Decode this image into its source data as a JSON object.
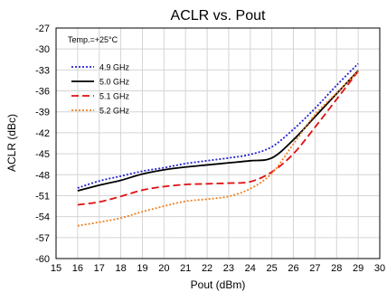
{
  "chart_data": {
    "type": "line",
    "title": "ACLR vs. Pout",
    "xlabel": "Pout (dBm)",
    "ylabel": "ACLR (dBc)",
    "xlim": [
      15,
      30
    ],
    "ylim": [
      -60,
      -27
    ],
    "xticks": [
      15,
      16,
      17,
      18,
      19,
      20,
      21,
      22,
      23,
      24,
      25,
      26,
      27,
      28,
      29,
      30
    ],
    "yticks": [
      -60,
      -57,
      -54,
      -51,
      -48,
      -45,
      -42,
      -39,
      -36,
      -33,
      -30,
      -27
    ],
    "grid": true,
    "legend_title": "Temp.=+25°C",
    "legend_position": "top-left",
    "series": [
      {
        "name": "4.9 GHz",
        "color": "#2020d0",
        "dash": "dotted",
        "x": [
          16,
          17,
          18,
          19,
          20,
          21,
          22,
          23,
          24,
          25,
          26,
          27,
          28,
          29
        ],
        "y": [
          -49.9,
          -48.9,
          -48.2,
          -47.5,
          -47.0,
          -46.4,
          -46.0,
          -45.6,
          -45.1,
          -44.0,
          -41.5,
          -38.5,
          -35.2,
          -32.1
        ]
      },
      {
        "name": "5.0 GHz",
        "color": "#000000",
        "dash": "solid",
        "x": [
          16,
          17,
          18,
          19,
          20,
          21,
          22,
          23,
          24,
          25,
          26,
          27,
          28,
          29
        ],
        "y": [
          -50.3,
          -49.5,
          -48.8,
          -47.9,
          -47.3,
          -46.9,
          -46.6,
          -46.3,
          -46.0,
          -45.6,
          -43.0,
          -39.7,
          -36.4,
          -33.1
        ]
      },
      {
        "name": "5.1 GHz",
        "color": "#e01010",
        "dash": "dashed",
        "x": [
          16,
          17,
          18,
          19,
          20,
          21,
          22,
          23,
          24,
          25,
          26,
          27,
          28,
          29
        ],
        "y": [
          -52.3,
          -51.9,
          -51.1,
          -50.2,
          -49.7,
          -49.4,
          -49.3,
          -49.2,
          -49.0,
          -47.6,
          -45.0,
          -41.2,
          -37.2,
          -33.2
        ]
      },
      {
        "name": "5.2 GHz",
        "color": "#f08020",
        "dash": "dotted",
        "x": [
          16,
          17,
          18,
          19,
          20,
          21,
          22,
          23,
          24,
          25,
          26,
          27,
          28,
          29
        ],
        "y": [
          -55.3,
          -54.8,
          -54.2,
          -53.3,
          -52.5,
          -51.8,
          -51.5,
          -51.1,
          -50.0,
          -47.8,
          -43.6,
          -39.4,
          -36.3,
          -33.2
        ]
      }
    ]
  }
}
